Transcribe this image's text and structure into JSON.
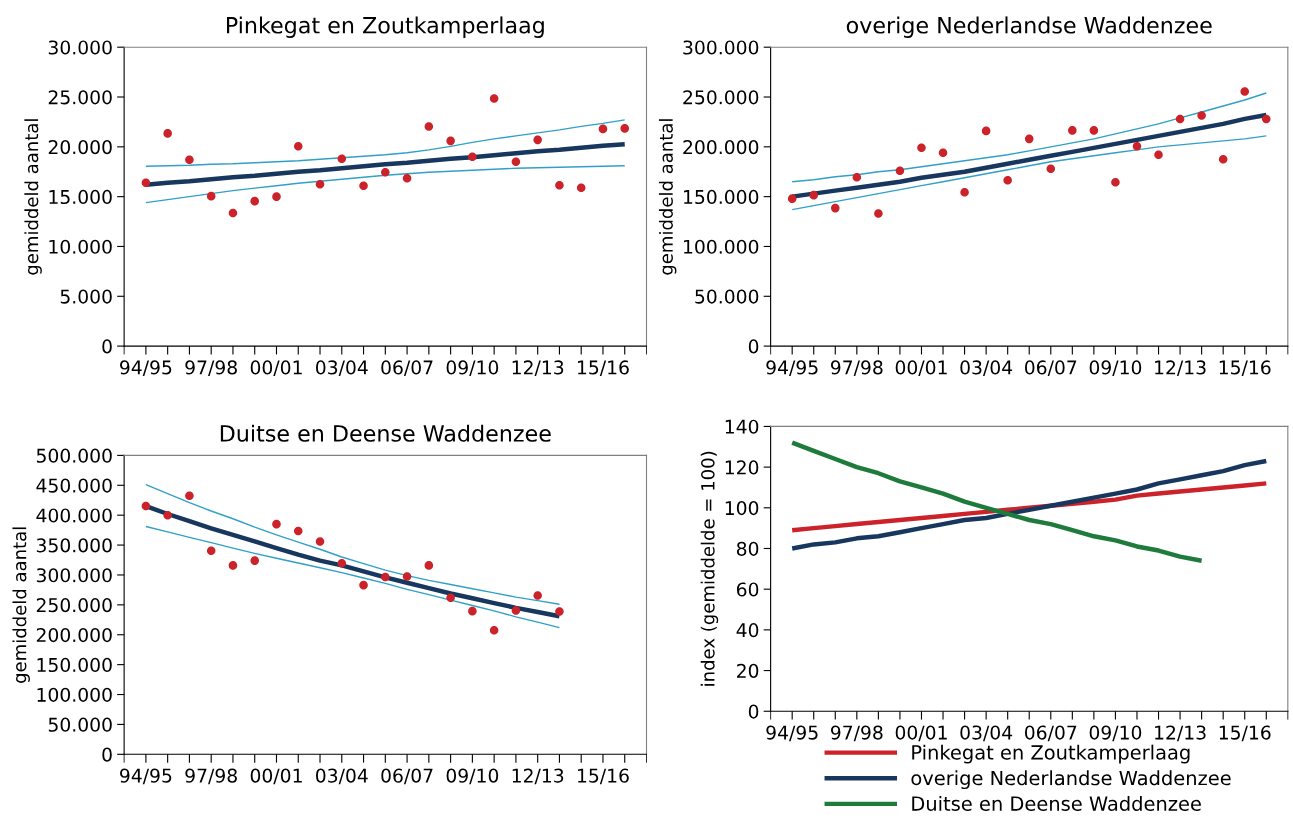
{
  "chart_data": [
    {
      "type": "scatter",
      "title": "Pinkegat en Zoutkamperlaag",
      "ylabel": "gemiddeld aantal",
      "categories": [
        "94/95",
        null,
        null,
        "97/98",
        null,
        null,
        "00/01",
        null,
        null,
        "03/04",
        null,
        null,
        "06/07",
        null,
        null,
        "09/10",
        null,
        null,
        "12/13",
        null,
        null,
        "15/16",
        null
      ],
      "ylim": [
        0,
        30000
      ],
      "yticks": [
        {
          "value": 0,
          "label": "0"
        },
        {
          "value": 5000,
          "label": "5.000"
        },
        {
          "value": 10000,
          "label": "10.000"
        },
        {
          "value": 15000,
          "label": "15.000"
        },
        {
          "value": 20000,
          "label": "20.000"
        },
        {
          "value": 25000,
          "label": "25.000"
        },
        {
          "value": 30000,
          "label": "30.000"
        }
      ],
      "grid": false,
      "legend": false,
      "series": [
        {
          "type": "line",
          "color": "#31a0c8",
          "values": [
            18050,
            18100,
            18150,
            18250,
            18300,
            18400,
            18500,
            18600,
            18750,
            18900,
            19050,
            19200,
            19400,
            19700,
            20050,
            20450,
            20800,
            21100,
            21400,
            21700,
            22050,
            22350,
            22700
          ]
        },
        {
          "type": "line",
          "color": "#31a0c8",
          "values": [
            14400,
            14700,
            15000,
            15300,
            15600,
            15850,
            16100,
            16350,
            16550,
            16750,
            16950,
            17150,
            17300,
            17450,
            17550,
            17650,
            17750,
            17850,
            17900,
            17950,
            18000,
            18050,
            18100
          ]
        },
        {
          "type": "line",
          "color": "#17375e",
          "values": [
            16200,
            16400,
            16550,
            16750,
            16950,
            17100,
            17300,
            17500,
            17650,
            17850,
            18050,
            18250,
            18400,
            18600,
            18800,
            18950,
            19150,
            19350,
            19550,
            19700,
            19900,
            20100,
            20250
          ]
        },
        {
          "type": "scatter",
          "color": "#cc2229",
          "values": [
            16400,
            21350,
            18700,
            15050,
            13350,
            14550,
            15000,
            20050,
            16250,
            18800,
            16100,
            17450,
            16850,
            22050,
            20600,
            19000,
            24850,
            18500,
            20700,
            16150,
            15900,
            21800,
            21850
          ]
        }
      ]
    },
    {
      "type": "scatter",
      "title": "overige Nederlandse Waddenzee",
      "ylabel": "gemiddeld aantal",
      "categories": [
        "94/95",
        null,
        null,
        "97/98",
        null,
        null,
        "00/01",
        null,
        null,
        "03/04",
        null,
        null,
        "06/07",
        null,
        null,
        "09/10",
        null,
        null,
        "12/13",
        null,
        null,
        "15/16",
        null
      ],
      "ylim": [
        0,
        300000
      ],
      "yticks": [
        {
          "value": 0,
          "label": "0"
        },
        {
          "value": 50000,
          "label": "50.000"
        },
        {
          "value": 100000,
          "label": "100.000"
        },
        {
          "value": 150000,
          "label": "150.000"
        },
        {
          "value": 200000,
          "label": "200.000"
        },
        {
          "value": 250000,
          "label": "250.000"
        },
        {
          "value": 300000,
          "label": "300.000"
        }
      ],
      "grid": false,
      "legend": false,
      "series": [
        {
          "type": "line",
          "color": "#31a0c8",
          "values": [
            165000,
            167000,
            170000,
            172000,
            175000,
            177000,
            180000,
            183000,
            186000,
            189000,
            192000,
            196000,
            200000,
            204000,
            208000,
            213000,
            218000,
            223000,
            229000,
            235000,
            241000,
            247000,
            254000
          ]
        },
        {
          "type": "line",
          "color": "#31a0c8",
          "values": [
            137000,
            141000,
            145000,
            149000,
            153000,
            157000,
            161000,
            165000,
            169000,
            173000,
            177000,
            181000,
            185000,
            188000,
            191000,
            194000,
            197000,
            200000,
            202000,
            204000,
            206000,
            208000,
            211000
          ]
        },
        {
          "type": "line",
          "color": "#17375e",
          "values": [
            150000,
            153000,
            156000,
            159000,
            162000,
            165000,
            169000,
            172000,
            175000,
            179000,
            183000,
            187000,
            191000,
            195000,
            199000,
            203000,
            207000,
            211000,
            215000,
            219000,
            223000,
            228000,
            232000
          ]
        },
        {
          "type": "scatter",
          "color": "#cc2229",
          "values": [
            148000,
            151500,
            138500,
            169500,
            133000,
            176000,
            199000,
            194000,
            154500,
            216000,
            166500,
            208000,
            178000,
            216500,
            216500,
            164500,
            200500,
            192000,
            228000,
            231500,
            187500,
            255500,
            228000
          ]
        }
      ]
    },
    {
      "type": "scatter",
      "title": "Duitse en Deense Waddenzee",
      "ylabel": "gemiddeld aantal",
      "categories": [
        "94/95",
        null,
        null,
        "97/98",
        null,
        null,
        "00/01",
        null,
        null,
        "03/04",
        null,
        null,
        "06/07",
        null,
        null,
        "09/10",
        null,
        null,
        "12/13",
        null,
        null,
        "15/16",
        null
      ],
      "ylim": [
        0,
        500000
      ],
      "yticks": [
        {
          "value": 0,
          "label": "0"
        },
        {
          "value": 50000,
          "label": "50.000"
        },
        {
          "value": 100000,
          "label": "100.000"
        },
        {
          "value": 150000,
          "label": "150.000"
        },
        {
          "value": 200000,
          "label": "200.000"
        },
        {
          "value": 250000,
          "label": "250.000"
        },
        {
          "value": 300000,
          "label": "300.000"
        },
        {
          "value": 350000,
          "label": "350.000"
        },
        {
          "value": 400000,
          "label": "400.000"
        },
        {
          "value": 450000,
          "label": "450.000"
        },
        {
          "value": 500000,
          "label": "500.000"
        }
      ],
      "grid": false,
      "legend": false,
      "series": [
        {
          "type": "line",
          "color": "#31a0c8",
          "values": [
            451000,
            436000,
            421000,
            407000,
            394000,
            380000,
            367000,
            355000,
            343000,
            330000,
            319000,
            308000,
            299000,
            291000,
            284000,
            277000,
            270000,
            263000,
            257000,
            251000,
            null,
            null,
            null
          ]
        },
        {
          "type": "line",
          "color": "#31a0c8",
          "values": [
            381000,
            372000,
            363000,
            354000,
            345000,
            336000,
            328000,
            320000,
            312000,
            304000,
            295000,
            286000,
            276000,
            267000,
            258000,
            249000,
            240000,
            230000,
            221000,
            212000,
            null,
            null,
            null
          ]
        },
        {
          "type": "line",
          "color": "#17375e",
          "values": [
            415000,
            402000,
            390000,
            378000,
            367000,
            356000,
            345000,
            334000,
            324000,
            316000,
            306000,
            296000,
            287000,
            278000,
            269000,
            261000,
            253000,
            245000,
            238000,
            231000,
            null,
            null,
            null
          ]
        },
        {
          "type": "scatter",
          "color": "#cc2229",
          "values": [
            415500,
            400000,
            432500,
            340500,
            316000,
            324000,
            385000,
            373500,
            356000,
            319500,
            283000,
            296500,
            297500,
            316000,
            262000,
            239500,
            207500,
            240500,
            265500,
            239000,
            null,
            null,
            null
          ]
        }
      ]
    },
    {
      "type": "line",
      "ylabel": "index (gemiddelde = 100)",
      "categories": [
        "94/95",
        null,
        null,
        "97/98",
        null,
        null,
        "00/01",
        null,
        null,
        "03/04",
        null,
        null,
        "06/07",
        null,
        null,
        "09/10",
        null,
        null,
        "12/13",
        null,
        null,
        "15/16",
        null
      ],
      "ylim": [
        0,
        140
      ],
      "yticks": [
        0,
        20,
        40,
        60,
        80,
        100,
        120,
        140
      ],
      "grid": false,
      "legend": "bottom",
      "marker": "none",
      "series": [
        {
          "name": "Pinkegat en Zoutkamperlaag",
          "color": "#cc2229",
          "values": [
            89,
            90,
            91,
            92,
            93,
            94,
            95,
            96,
            97,
            98,
            99,
            100,
            101,
            102,
            103,
            104,
            106,
            107,
            108,
            109,
            110,
            111,
            112
          ]
        },
        {
          "name": "overige Nederlandse Waddenzee",
          "color": "#17375e",
          "values": [
            80,
            82,
            83,
            85,
            86,
            88,
            90,
            92,
            94,
            95,
            97,
            99,
            101,
            103,
            105,
            107,
            109,
            112,
            114,
            116,
            118,
            121,
            123
          ]
        },
        {
          "name": "Duitse en Deense Waddenzee",
          "color": "#1e7b3c",
          "values": [
            132,
            128,
            124,
            120,
            117,
            113,
            110,
            107,
            103,
            100,
            97,
            94,
            92,
            89,
            86,
            84,
            81,
            79,
            76,
            74,
            null,
            null,
            null
          ]
        }
      ]
    }
  ]
}
